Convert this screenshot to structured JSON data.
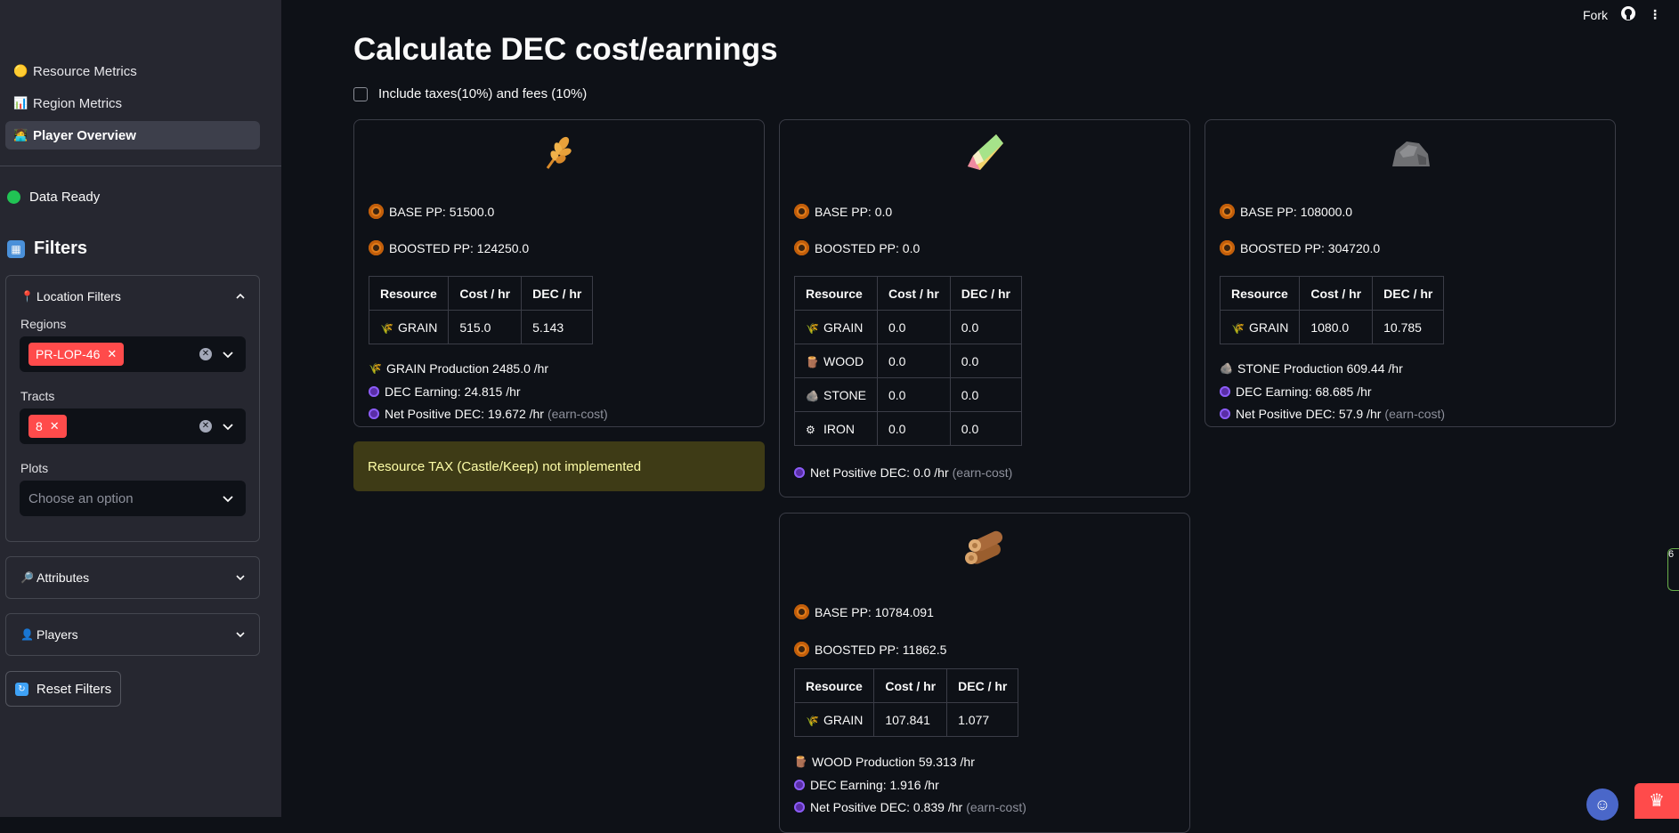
{
  "header": {
    "fork_label": "Fork",
    "github_icon": "github-icon",
    "menu_icon": "more-vertical-icon"
  },
  "sidebar": {
    "nav": [
      {
        "label": "Resource Metrics",
        "icon": "🟡"
      },
      {
        "label": "Region Metrics",
        "icon": "📊"
      },
      {
        "label": "Player Overview",
        "icon": "🧑‍💻"
      }
    ],
    "status": "Data Ready",
    "filters_title": "Filters",
    "location_filters": {
      "title": "Location Filters",
      "regions_label": "Regions",
      "regions_selected": "PR-LOP-46",
      "tracts_label": "Tracts",
      "tracts_selected": "8",
      "plots_label": "Plots",
      "plots_placeholder": "Choose an option"
    },
    "attributes_title": "Attributes",
    "players_title": "Players",
    "reset_label": "Reset Filters"
  },
  "main": {
    "title": "Calculate DEC cost/earnings",
    "checkbox_label": "Include taxes(10%) and fees (10%)",
    "table_headers": {
      "resource": "Resource",
      "cost": "Cost / hr",
      "dec": "DEC / hr"
    },
    "cards": {
      "grain": {
        "base_pp": "BASE PP: 51500.0",
        "boosted_pp": "BOOSTED PP: 124250.0",
        "rows": [
          {
            "resource": "GRAIN",
            "cost": "515.0",
            "dec": "5.143"
          }
        ],
        "production": "GRAIN Production 2485.0 /hr",
        "dec_earning": "DEC Earning: 24.815 /hr",
        "net_positive": "Net Positive DEC: 19.672 /hr",
        "earn_cost": "(earn-cost)"
      },
      "research": {
        "base_pp": "BASE PP: 0.0",
        "boosted_pp": "BOOSTED PP: 0.0",
        "rows": [
          {
            "resource": "GRAIN",
            "cost": "0.0",
            "dec": "0.0"
          },
          {
            "resource": "WOOD",
            "cost": "0.0",
            "dec": "0.0"
          },
          {
            "resource": "STONE",
            "cost": "0.0",
            "dec": "0.0"
          },
          {
            "resource": "IRON",
            "cost": "0.0",
            "dec": "0.0"
          }
        ],
        "net_positive": "Net Positive DEC: 0.0 /hr",
        "earn_cost": "(earn-cost)"
      },
      "stone": {
        "base_pp": "BASE PP: 108000.0",
        "boosted_pp": "BOOSTED PP: 304720.0",
        "rows": [
          {
            "resource": "GRAIN",
            "cost": "1080.0",
            "dec": "10.785"
          }
        ],
        "production": "STONE Production 609.44 /hr",
        "dec_earning": "DEC Earning: 68.685 /hr",
        "net_positive": "Net Positive DEC: 57.9 /hr",
        "earn_cost": "(earn-cost)"
      },
      "wood": {
        "base_pp": "BASE PP: 10784.091",
        "boosted_pp": "BOOSTED PP: 11862.5",
        "rows": [
          {
            "resource": "GRAIN",
            "cost": "107.841",
            "dec": "1.077"
          }
        ],
        "production": "WOOD Production 59.313 /hr",
        "dec_earning": "DEC Earning: 1.916 /hr",
        "net_positive": "Net Positive DEC: 0.839 /hr",
        "earn_cost": "(earn-cost)"
      }
    },
    "warning": "Resource TAX (Castle/Keep) not implemented",
    "side_badge": "6"
  },
  "colors": {
    "accent": "#ff4b4b",
    "success": "#21c354",
    "warning_bg": "#3e3b16"
  }
}
